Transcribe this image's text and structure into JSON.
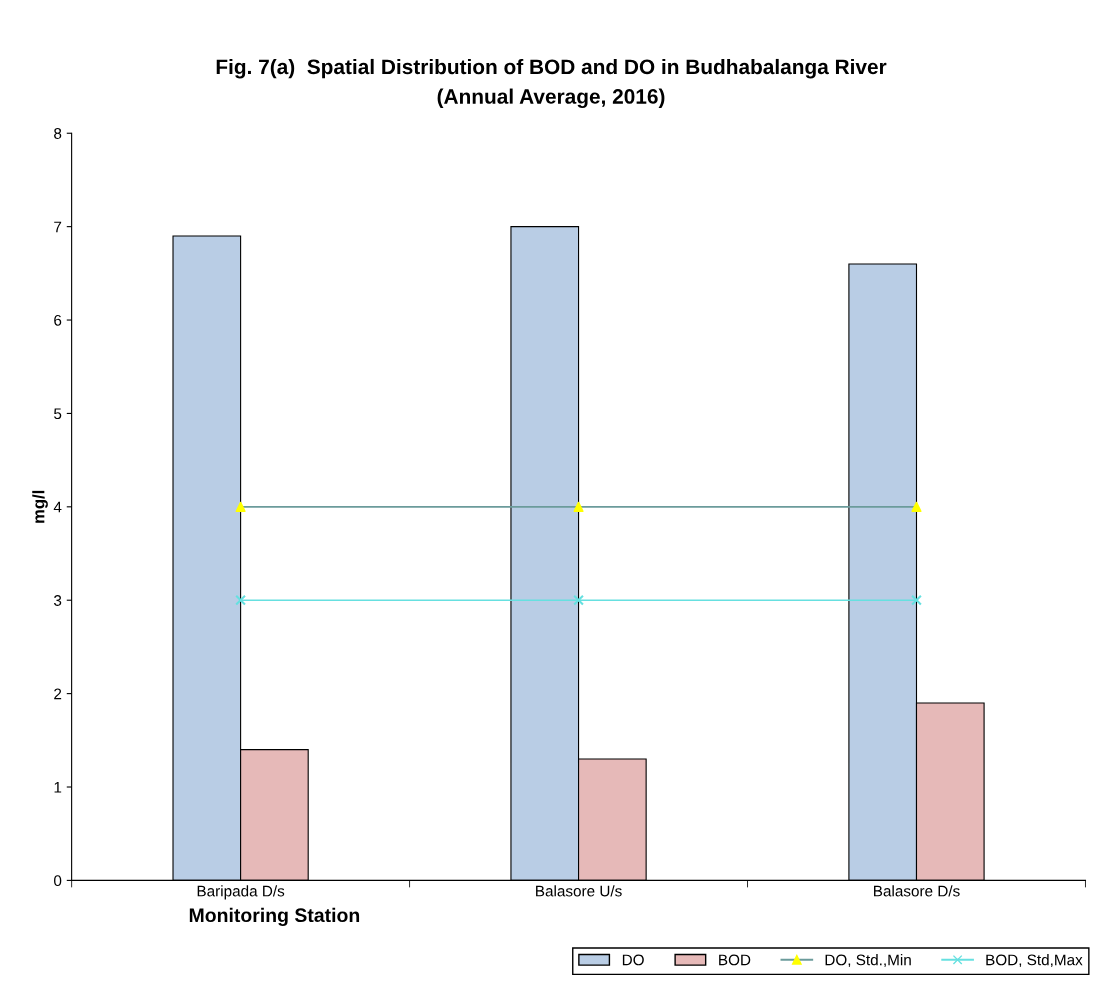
{
  "chart_data": {
    "type": "bar",
    "title": "Fig. 7(a)  Spatial Distribution of BOD and DO in Budhabalanga River",
    "subtitle": "(Annual Average, 2016)",
    "xlabel": "Monitoring Station",
    "ylabel": "mg/l",
    "categories": [
      "Baripada D/s",
      "Balasore U/s",
      "Balasore D/s"
    ],
    "series": [
      {
        "name": "DO",
        "color": "#b9cde5",
        "values": [
          6.9,
          7.0,
          6.6
        ]
      },
      {
        "name": "BOD",
        "color": "#e6b9b8",
        "values": [
          1.4,
          1.3,
          1.9
        ]
      },
      {
        "name": "DO, Std.,Min",
        "type": "line",
        "color": "#6b9b9b",
        "colors": [
          "#ffff00",
          "#ffff00",
          "#ffff00"
        ],
        "marker": "triangle",
        "values": [
          4,
          4,
          4
        ]
      },
      {
        "name": "BOD, Std,Max",
        "type": "line",
        "color": "#66e0e0",
        "colors": [
          "#66e0e0",
          "#66e0e0",
          "#66e0e0"
        ],
        "marker": "cross",
        "values": [
          3,
          3,
          3
        ]
      }
    ],
    "ylim": [
      0,
      8
    ],
    "yticks": [
      0,
      1,
      2,
      3,
      4,
      5,
      6,
      7,
      8
    ],
    "grid": false,
    "legend": "bottom right"
  }
}
